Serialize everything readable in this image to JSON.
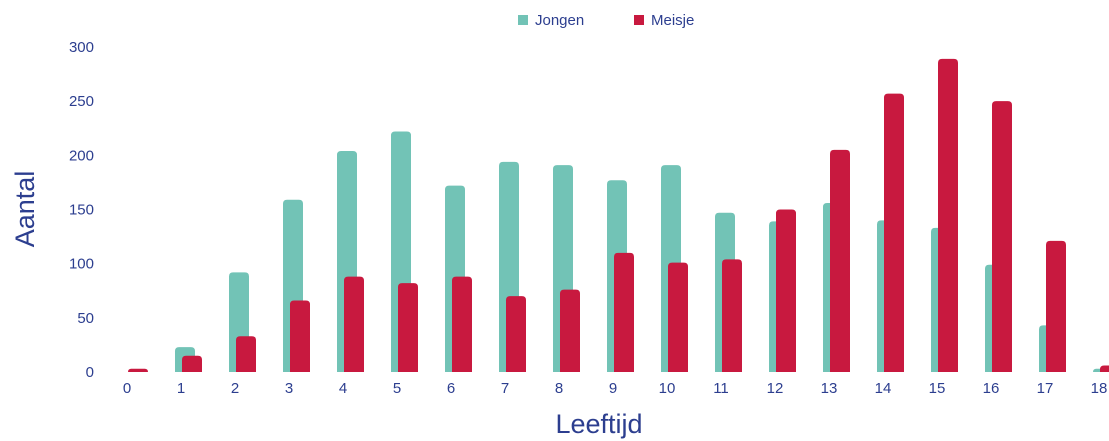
{
  "chart_data": {
    "type": "bar",
    "xlabel": "Leeftijd",
    "ylabel": "Aantal",
    "ylim": [
      0,
      300
    ],
    "yticks": [
      0,
      50,
      100,
      150,
      200,
      250,
      300
    ],
    "categories": [
      "0",
      "1",
      "2",
      "3",
      "4",
      "5",
      "6",
      "7",
      "8",
      "9",
      "10",
      "11",
      "12",
      "13",
      "14",
      "15",
      "16",
      "17",
      "18"
    ],
    "series": [
      {
        "name": "Jongen",
        "color": "#72c3b6",
        "values": [
          0,
          23,
          92,
          159,
          204,
          222,
          172,
          194,
          191,
          177,
          191,
          147,
          139,
          156,
          140,
          133,
          99,
          43,
          3
        ]
      },
      {
        "name": "Meisje",
        "color": "#c8193f",
        "values": [
          3,
          15,
          33,
          66,
          88,
          82,
          88,
          70,
          76,
          110,
          101,
          104,
          150,
          205,
          257,
          289,
          250,
          121,
          6
        ]
      }
    ],
    "grid": false,
    "legend_position": "top-center"
  }
}
